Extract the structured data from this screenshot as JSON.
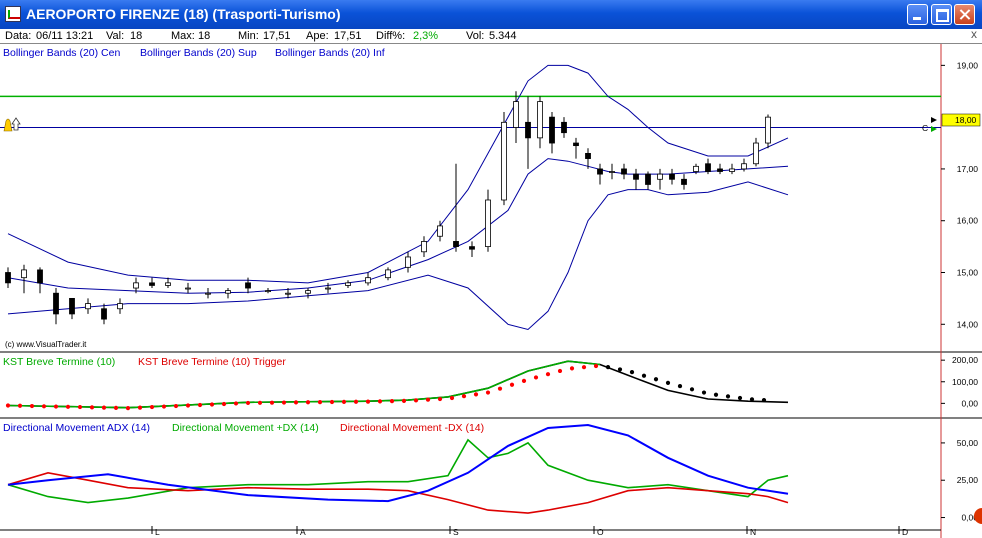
{
  "window": {
    "title": "AEROPORTO FIRENZE (18)  (Trasporti-Turismo)"
  },
  "info": {
    "data_label": "Data:",
    "data_value": "06/11 13:21",
    "val_label": "Val:",
    "val_value": "18",
    "max_label": "Max:",
    "max_value": "18",
    "min_label": "Min:",
    "min_value": "17,51",
    "ape_label": "Ape:",
    "ape_value": "17,51",
    "diff_label": "Diff%:",
    "diff_value": "2,3%",
    "vol_label": "Vol:",
    "vol_value": "5.344",
    "close_label": "x"
  },
  "price_panel": {
    "legend": [
      "Bollinger Bands (20) Cen",
      "Bollinger Bands (20) Sup",
      "Bollinger Bands (20) Inf"
    ],
    "watermark": "(c) www.VisualTrader.it",
    "current_price_label": "18,00",
    "green_line_value": 18.4,
    "blue_line_value": 17.8
  },
  "kst_panel": {
    "legend": [
      "KST Breve Termine (10)",
      "KST Breve Termine (10) Trigger"
    ]
  },
  "adx_panel": {
    "legend": [
      "Directional Movement ADX (14)",
      "Directional Movement +DX (14)",
      "Directional Movement -DX (14)"
    ]
  },
  "x_labels": [
    "L",
    "A",
    "S",
    "O",
    "N",
    "D"
  ],
  "colors": {
    "bollinger": "#0000a0",
    "kst": "#000000",
    "trigger": "#ff0000",
    "adx": "#0000ff",
    "plus_dx": "#00aa00",
    "minus_dx": "#dd0000",
    "hline_green": "#00b000",
    "hline_blue": "#0000a0"
  },
  "chart_data": [
    {
      "type": "candlestick",
      "title": "AEROPORTO FIRENZE (18)",
      "y_ticks": [
        "14,00",
        "15,00",
        "16,00",
        "17,00",
        "18,00",
        "19,00"
      ],
      "ylim": [
        13.6,
        19.2
      ],
      "series": [
        {
          "name": "Bollinger Bands (20) Cen",
          "x": [
            0,
            15,
            30,
            45,
            60,
            75,
            90,
            105,
            115,
            125,
            130,
            135,
            140,
            145,
            150,
            155,
            165,
            175,
            185,
            195
          ],
          "values": [
            14.9,
            14.7,
            14.65,
            14.6,
            14.62,
            14.7,
            14.85,
            15.25,
            15.6,
            16.2,
            16.9,
            17.2,
            17.15,
            17.05,
            16.95,
            16.9,
            16.9,
            16.95,
            17.0,
            17.05
          ]
        },
        {
          "name": "Bollinger Bands (20) Sup",
          "x": [
            0,
            15,
            30,
            45,
            60,
            75,
            90,
            105,
            115,
            125,
            130,
            135,
            140,
            145,
            150,
            155,
            160,
            165,
            175,
            185,
            195
          ],
          "values": [
            15.75,
            15.2,
            14.95,
            14.85,
            14.85,
            14.8,
            15.0,
            15.6,
            16.6,
            18.0,
            18.7,
            19.0,
            19.0,
            18.85,
            18.4,
            18.15,
            17.8,
            17.5,
            17.25,
            17.25,
            17.6
          ]
        },
        {
          "name": "Bollinger Bands (20) Inf",
          "x": [
            0,
            15,
            30,
            45,
            60,
            75,
            90,
            105,
            115,
            125,
            130,
            135,
            140,
            145,
            150,
            155,
            160,
            165,
            175,
            185,
            195
          ],
          "values": [
            14.2,
            14.3,
            14.4,
            14.4,
            14.45,
            14.55,
            14.65,
            14.95,
            14.7,
            14.0,
            13.9,
            14.25,
            15.0,
            16.0,
            16.5,
            16.6,
            16.6,
            16.5,
            16.55,
            16.75,
            16.5
          ]
        }
      ],
      "candles": [
        {
          "x": 0,
          "open": 15.0,
          "close": 14.8,
          "high": 15.1,
          "low": 14.7
        },
        {
          "x": 4,
          "open": 14.9,
          "close": 15.05,
          "high": 15.15,
          "low": 14.6
        },
        {
          "x": 8,
          "open": 15.05,
          "close": 14.8,
          "high": 15.1,
          "low": 14.6
        },
        {
          "x": 12,
          "open": 14.6,
          "close": 14.2,
          "high": 14.7,
          "low": 14.0
        },
        {
          "x": 16,
          "open": 14.5,
          "close": 14.2,
          "high": 14.5,
          "low": 14.1
        },
        {
          "x": 20,
          "open": 14.3,
          "close": 14.4,
          "high": 14.5,
          "low": 14.2
        },
        {
          "x": 24,
          "open": 14.3,
          "close": 14.1,
          "high": 14.4,
          "low": 14.0
        },
        {
          "x": 28,
          "open": 14.3,
          "close": 14.4,
          "high": 14.5,
          "low": 14.2
        },
        {
          "x": 32,
          "open": 14.7,
          "close": 14.8,
          "high": 14.9,
          "low": 14.6
        },
        {
          "x": 36,
          "open": 14.8,
          "close": 14.75,
          "high": 14.9,
          "low": 14.7
        },
        {
          "x": 40,
          "open": 14.75,
          "close": 14.8,
          "high": 14.9,
          "low": 14.7
        },
        {
          "x": 45,
          "open": 14.7,
          "close": 14.7,
          "high": 14.8,
          "low": 14.6
        },
        {
          "x": 50,
          "open": 14.6,
          "close": 14.6,
          "high": 14.7,
          "low": 14.5
        },
        {
          "x": 55,
          "open": 14.6,
          "close": 14.65,
          "high": 14.7,
          "low": 14.5
        },
        {
          "x": 60,
          "open": 14.8,
          "close": 14.7,
          "high": 14.9,
          "low": 14.6
        },
        {
          "x": 65,
          "open": 14.65,
          "close": 14.65,
          "high": 14.7,
          "low": 14.6
        },
        {
          "x": 70,
          "open": 14.6,
          "close": 14.6,
          "high": 14.7,
          "low": 14.5
        },
        {
          "x": 75,
          "open": 14.6,
          "close": 14.65,
          "high": 14.7,
          "low": 14.5
        },
        {
          "x": 80,
          "open": 14.7,
          "close": 14.7,
          "high": 14.8,
          "low": 14.6
        },
        {
          "x": 85,
          "open": 14.75,
          "close": 14.8,
          "high": 14.85,
          "low": 14.7
        },
        {
          "x": 90,
          "open": 14.8,
          "close": 14.9,
          "high": 15.0,
          "low": 14.75
        },
        {
          "x": 95,
          "open": 14.9,
          "close": 15.05,
          "high": 15.1,
          "low": 14.85
        },
        {
          "x": 100,
          "open": 15.1,
          "close": 15.3,
          "high": 15.4,
          "low": 15.0
        },
        {
          "x": 104,
          "open": 15.4,
          "close": 15.6,
          "high": 15.7,
          "low": 15.3
        },
        {
          "x": 108,
          "open": 15.7,
          "close": 15.9,
          "high": 16.0,
          "low": 15.6
        },
        {
          "x": 112,
          "open": 15.6,
          "close": 15.5,
          "high": 17.1,
          "low": 15.4
        },
        {
          "x": 116,
          "open": 15.5,
          "close": 15.45,
          "high": 15.6,
          "low": 15.3
        },
        {
          "x": 120,
          "open": 15.5,
          "close": 16.4,
          "high": 16.6,
          "low": 15.4
        },
        {
          "x": 124,
          "open": 16.4,
          "close": 17.9,
          "high": 18.1,
          "low": 16.3
        },
        {
          "x": 127,
          "open": 17.8,
          "close": 18.3,
          "high": 18.5,
          "low": 17.5
        },
        {
          "x": 130,
          "open": 17.9,
          "close": 17.6,
          "high": 18.4,
          "low": 17.0
        },
        {
          "x": 133,
          "open": 17.6,
          "close": 18.3,
          "high": 18.4,
          "low": 17.4
        },
        {
          "x": 136,
          "open": 18.0,
          "close": 17.5,
          "high": 18.1,
          "low": 17.3
        },
        {
          "x": 139,
          "open": 17.9,
          "close": 17.7,
          "high": 18.0,
          "low": 17.6
        },
        {
          "x": 142,
          "open": 17.5,
          "close": 17.45,
          "high": 17.6,
          "low": 17.2
        },
        {
          "x": 145,
          "open": 17.3,
          "close": 17.2,
          "high": 17.4,
          "low": 17.0
        },
        {
          "x": 148,
          "open": 17.0,
          "close": 16.9,
          "high": 17.1,
          "low": 16.7
        },
        {
          "x": 151,
          "open": 16.95,
          "close": 16.95,
          "high": 17.1,
          "low": 16.8
        },
        {
          "x": 154,
          "open": 17.0,
          "close": 16.9,
          "high": 17.1,
          "low": 16.8
        },
        {
          "x": 157,
          "open": 16.9,
          "close": 16.8,
          "high": 17.0,
          "low": 16.6
        },
        {
          "x": 160,
          "open": 16.9,
          "close": 16.7,
          "high": 16.95,
          "low": 16.6
        },
        {
          "x": 163,
          "open": 16.8,
          "close": 16.9,
          "high": 17.0,
          "low": 16.6
        },
        {
          "x": 166,
          "open": 16.9,
          "close": 16.8,
          "high": 17.0,
          "low": 16.7
        },
        {
          "x": 169,
          "open": 16.8,
          "close": 16.7,
          "high": 16.9,
          "low": 16.6
        },
        {
          "x": 172,
          "open": 16.95,
          "close": 17.05,
          "high": 17.1,
          "low": 16.9
        },
        {
          "x": 175,
          "open": 17.1,
          "close": 16.95,
          "high": 17.2,
          "low": 16.9
        },
        {
          "x": 178,
          "open": 17.0,
          "close": 16.95,
          "high": 17.1,
          "low": 16.9
        },
        {
          "x": 181,
          "open": 16.95,
          "close": 17.0,
          "high": 17.1,
          "low": 16.9
        },
        {
          "x": 184,
          "open": 17.0,
          "close": 17.1,
          "high": 17.2,
          "low": 16.95
        },
        {
          "x": 187,
          "open": 17.1,
          "close": 17.5,
          "high": 17.6,
          "low": 17.05
        },
        {
          "x": 190,
          "open": 17.5,
          "close": 18.0,
          "high": 18.05,
          "low": 17.4
        }
      ]
    },
    {
      "type": "line",
      "title": "KST Breve Termine (10)",
      "y_ticks": [
        "0,00",
        "100,00",
        "200,00"
      ],
      "ylim": [
        -40,
        210
      ],
      "series": [
        {
          "name": "KST Breve Termine (10)",
          "x": [
            0,
            30,
            60,
            90,
            100,
            110,
            120,
            130,
            140,
            148,
            155,
            165,
            175,
            185,
            195
          ],
          "values": [
            -10,
            -20,
            5,
            10,
            15,
            30,
            70,
            150,
            195,
            180,
            130,
            60,
            20,
            10,
            5
          ]
        },
        {
          "name": "KST Breve Termine (10) Trigger",
          "x": [
            0,
            30,
            60,
            90,
            100,
            110,
            120,
            130,
            140,
            148,
            155,
            165,
            175,
            185,
            195
          ],
          "values": [
            -10,
            -22,
            2,
            8,
            12,
            22,
            50,
            110,
            160,
            175,
            150,
            95,
            45,
            20,
            8
          ]
        }
      ]
    },
    {
      "type": "line",
      "title": "Directional Movement ADX (14)",
      "y_ticks": [
        "0,00",
        "25,00",
        "50,00"
      ],
      "ylim": [
        -5,
        62
      ],
      "series": [
        {
          "name": "Directional Movement ADX (14)",
          "x": [
            0,
            10,
            25,
            40,
            60,
            80,
            95,
            105,
            115,
            125,
            135,
            145,
            155,
            165,
            175,
            185,
            195
          ],
          "values": [
            22,
            25,
            29,
            22,
            15,
            12,
            11,
            18,
            30,
            48,
            60,
            62,
            55,
            40,
            28,
            20,
            16
          ]
        },
        {
          "name": "Directional Movement +DX (14)",
          "x": [
            0,
            10,
            20,
            30,
            45,
            60,
            75,
            90,
            100,
            110,
            115,
            120,
            125,
            130,
            135,
            145,
            155,
            165,
            175,
            185,
            190,
            195
          ],
          "values": [
            22,
            14,
            10,
            13,
            20,
            22,
            22,
            24,
            24,
            28,
            52,
            40,
            43,
            50,
            35,
            25,
            20,
            22,
            18,
            14,
            25,
            28
          ]
        },
        {
          "name": "Directional Movement -DX (14)",
          "x": [
            0,
            10,
            20,
            30,
            45,
            60,
            75,
            90,
            100,
            110,
            120,
            130,
            135,
            145,
            155,
            165,
            175,
            185,
            190,
            195
          ],
          "values": [
            22,
            30,
            25,
            20,
            18,
            20,
            19,
            19,
            18,
            12,
            5,
            3,
            5,
            10,
            18,
            20,
            18,
            16,
            14,
            10
          ]
        }
      ]
    }
  ]
}
